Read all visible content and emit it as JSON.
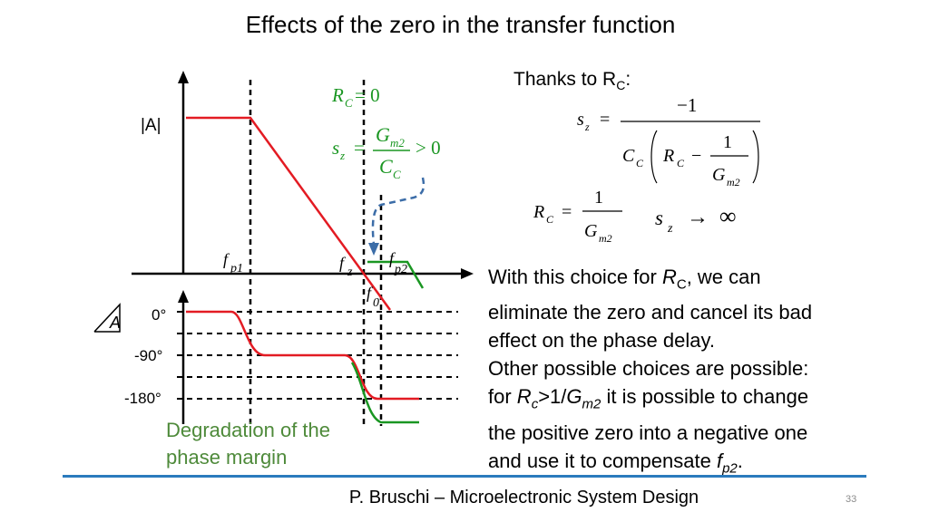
{
  "title": "Effects of the zero in the transfer function",
  "thanks": {
    "prefix": "Thanks to R",
    "sub": "C",
    "suffix": ":"
  },
  "diagram": {
    "mag_label": "|A|",
    "phase_label": "A",
    "phase_ticks": [
      "0°",
      "-90°",
      "-180°"
    ],
    "freq_labels": {
      "fp1": "p1",
      "fz": "z",
      "fp2": "p2",
      "f0": "0",
      "f": "f"
    },
    "green_eq": {
      "rc": "R",
      "rc_sub": "C",
      "rc_rhs": "= 0",
      "sz": "s",
      "sz_sub": "z",
      "num": "G",
      "num_sub": "m2",
      "den": "C",
      "den_sub": "C",
      "rhs": "> 0"
    },
    "colors": {
      "magnitude": "#e31b23",
      "green": "#1a9622",
      "axis": "#000000",
      "arrow": "#3c6da8"
    }
  },
  "equations": {
    "sz_lhs": "s",
    "sz_sub": "z",
    "neg_one": "−1",
    "one": "1",
    "cc": "C",
    "cc_sub": "C",
    "rc": "R",
    "rc_sub": "C",
    "gm": "G",
    "gm_sub": "m2",
    "infty": "∞",
    "arrow": "→"
  },
  "body": {
    "line1_a": "With this choice for ",
    "line1_r": "R",
    "line1_sub": "C",
    "line1_b": ", we can",
    "line2": "eliminate the zero and cancel its bad",
    "line3": "effect on the phase delay.",
    "line4": "Other possible choices are possible:",
    "line5_a": "for ",
    "line5_r": "R",
    "line5_sub": "c",
    "line5_b": ">1/",
    "line5_g": "G",
    "line5_gsub": "m2",
    "line5_c": " it is possible to change",
    "line6": "the positive zero into a negative one",
    "line7_a": "and use it to compensate ",
    "line7_f": "f",
    "line7_sub": "p2",
    "line7_b": "."
  },
  "degradation": {
    "line1": "Degradation of the",
    "line2": "phase margin"
  },
  "footer": {
    "text": "P. Bruschi – Microelectronic System Design",
    "page": "33"
  }
}
